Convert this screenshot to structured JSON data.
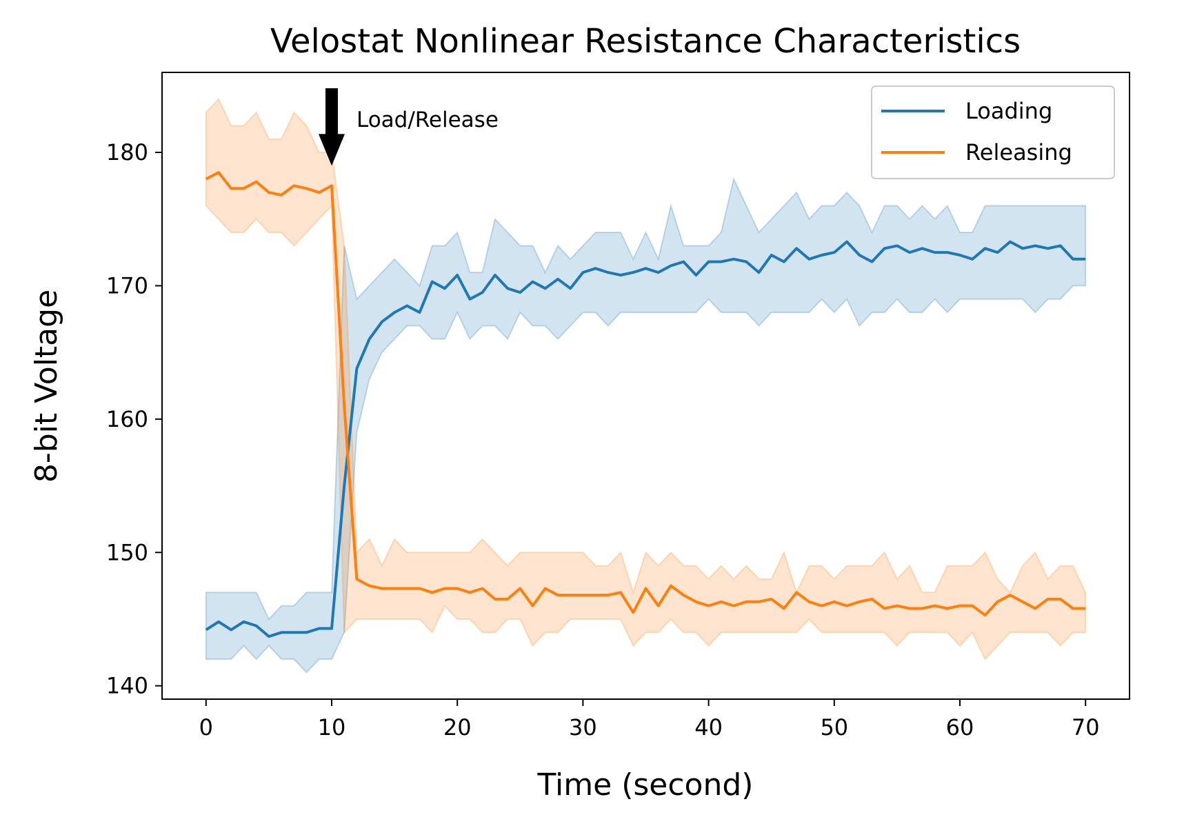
{
  "chart_data": {
    "type": "line",
    "title": "Velostat Nonlinear Resistance Characteristics",
    "xlabel": "Time (second)",
    "ylabel": "8-bit Voltage",
    "xlim": [
      -3.5,
      73.5
    ],
    "ylim": [
      139,
      186
    ],
    "xticks": [
      0,
      10,
      20,
      30,
      40,
      50,
      60,
      70
    ],
    "yticks": [
      140,
      150,
      160,
      170,
      180
    ],
    "grid": false,
    "legend": "top-right",
    "annotation": {
      "text": "Load/Release",
      "x": 10,
      "y": 179
    },
    "series": [
      {
        "name": "Loading",
        "color": "#1f77b4",
        "band_color": "#1f77b4",
        "x": [
          0,
          1,
          2,
          3,
          4,
          5,
          6,
          7,
          8,
          9,
          10,
          11,
          12,
          13,
          14,
          15,
          16,
          17,
          18,
          19,
          20,
          21,
          22,
          23,
          24,
          25,
          26,
          27,
          28,
          29,
          30,
          31,
          32,
          33,
          34,
          35,
          36,
          37,
          38,
          39,
          40,
          41,
          42,
          43,
          44,
          45,
          46,
          47,
          48,
          49,
          50,
          51,
          52,
          53,
          54,
          55,
          56,
          57,
          58,
          59,
          60,
          61,
          62,
          63,
          64,
          65,
          66,
          67,
          68,
          69,
          70
        ],
        "y": [
          144.2,
          144.8,
          144.2,
          144.8,
          144.5,
          143.7,
          144.0,
          144.0,
          144.0,
          144.3,
          144.3,
          155.0,
          163.8,
          166.0,
          167.3,
          168.0,
          168.5,
          168.0,
          170.3,
          169.8,
          170.8,
          169.0,
          169.5,
          170.8,
          169.8,
          169.5,
          170.3,
          169.8,
          170.5,
          169.8,
          171.0,
          171.3,
          171.0,
          170.8,
          171.0,
          171.3,
          171.0,
          171.5,
          171.8,
          170.8,
          171.8,
          171.8,
          172.0,
          171.8,
          171.0,
          172.3,
          171.8,
          172.8,
          172.0,
          172.3,
          172.5,
          173.3,
          172.3,
          171.8,
          172.8,
          173.0,
          172.5,
          172.8,
          172.5,
          172.5,
          172.3,
          172.0,
          172.8,
          172.5,
          173.3,
          172.8,
          173.0,
          172.8,
          173.0,
          172.0,
          172.0
        ],
        "lower": [
          142,
          142,
          142,
          143,
          142,
          143,
          142,
          142,
          141,
          142,
          142,
          144,
          159,
          163,
          165,
          166,
          167,
          167,
          166,
          166,
          168,
          166,
          167,
          167,
          166,
          168,
          167,
          167,
          166,
          167,
          168,
          168,
          167,
          168,
          168,
          168,
          168,
          168,
          168,
          168,
          169,
          168,
          168,
          168,
          167,
          168,
          168,
          168,
          168,
          169,
          168,
          169,
          167,
          168,
          168,
          169,
          168,
          168,
          169,
          168,
          169,
          169,
          169,
          169,
          169,
          169,
          168,
          169,
          169,
          170,
          170
        ],
        "upper": [
          147,
          147,
          147,
          147,
          147,
          145,
          146,
          146,
          147,
          147,
          147,
          173,
          169,
          170,
          171,
          172,
          171,
          170,
          173,
          173,
          174,
          171,
          171,
          175,
          174,
          173,
          173,
          171,
          173,
          172,
          173,
          174,
          174,
          174,
          172,
          174,
          172,
          176,
          173,
          173,
          173,
          174,
          178,
          176,
          174,
          175,
          176,
          177,
          175,
          176,
          176,
          177,
          176,
          174,
          176,
          176,
          175,
          176,
          175,
          176,
          174,
          174,
          176,
          176,
          176,
          176,
          176,
          176,
          176,
          176,
          176
        ]
      },
      {
        "name": "Releasing",
        "color": "#ff7f0e",
        "band_color": "#ff7f0e",
        "x": [
          0,
          1,
          2,
          3,
          4,
          5,
          6,
          7,
          8,
          9,
          10,
          11,
          12,
          13,
          14,
          15,
          16,
          17,
          18,
          19,
          20,
          21,
          22,
          23,
          24,
          25,
          26,
          27,
          28,
          29,
          30,
          31,
          32,
          33,
          34,
          35,
          36,
          37,
          38,
          39,
          40,
          41,
          42,
          43,
          44,
          45,
          46,
          47,
          48,
          49,
          50,
          51,
          52,
          53,
          54,
          55,
          56,
          57,
          58,
          59,
          60,
          61,
          62,
          63,
          64,
          65,
          66,
          67,
          68,
          69,
          70
        ],
        "y": [
          178.0,
          178.5,
          177.3,
          177.3,
          177.8,
          177.0,
          176.8,
          177.5,
          177.3,
          177.0,
          177.5,
          161.0,
          148.0,
          147.5,
          147.3,
          147.3,
          147.3,
          147.3,
          147.0,
          147.3,
          147.3,
          147.0,
          147.3,
          146.5,
          146.5,
          147.3,
          146.0,
          147.3,
          146.8,
          146.8,
          146.8,
          146.8,
          146.8,
          147.0,
          145.5,
          147.3,
          146.0,
          147.5,
          146.8,
          146.3,
          146.0,
          146.3,
          146.0,
          146.3,
          146.3,
          146.5,
          145.8,
          147.0,
          146.3,
          146.0,
          146.3,
          146.0,
          146.3,
          146.5,
          145.8,
          146.0,
          145.8,
          145.8,
          146.0,
          145.8,
          146.0,
          146.0,
          145.3,
          146.3,
          146.8,
          146.3,
          145.8,
          146.5,
          146.5,
          145.8,
          145.8
        ],
        "lower": [
          176,
          175,
          174,
          174,
          175,
          174,
          174,
          173,
          174,
          175,
          176,
          144,
          145,
          145,
          145,
          145,
          145,
          145,
          144,
          146,
          145,
          145,
          144,
          144,
          145,
          145,
          143,
          144,
          144,
          145,
          145,
          145,
          145,
          145,
          143,
          144,
          144,
          145,
          144,
          144,
          143,
          144,
          144,
          144,
          144,
          144,
          144,
          144,
          145,
          144,
          144,
          144,
          144,
          144,
          144,
          143,
          144,
          144,
          144,
          144,
          143,
          144,
          142,
          143,
          144,
          144,
          144,
          144,
          143,
          144,
          144
        ],
        "upper": [
          183,
          184,
          182,
          182,
          183,
          181,
          181,
          183,
          182,
          180,
          180,
          173,
          150,
          151,
          149,
          151,
          150,
          150,
          150,
          150,
          150,
          150,
          151,
          150,
          149,
          150,
          150,
          150,
          150,
          150,
          150,
          149,
          149,
          150,
          147,
          150,
          149,
          150,
          149,
          149,
          148,
          149,
          148,
          149,
          148,
          148,
          150,
          147,
          149,
          149,
          148,
          149,
          149,
          149,
          150,
          148,
          149,
          147,
          147,
          149,
          149,
          149,
          150,
          148,
          147,
          149,
          150,
          148,
          149,
          149,
          147
        ]
      }
    ]
  }
}
